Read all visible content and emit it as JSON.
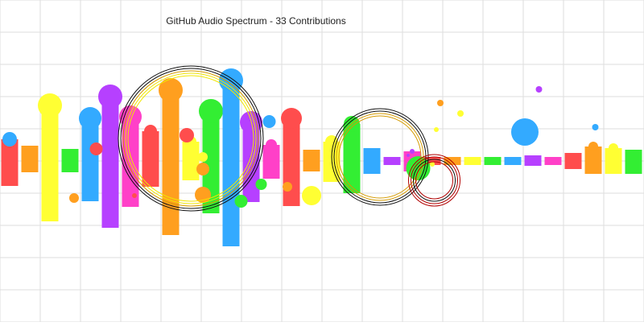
{
  "palette": {
    "background": "#ffffff",
    "grid": "#dddddd",
    "red": "#ff4d4d",
    "orange": "#ff9f1f",
    "yellow": "#ffff33",
    "green": "#33ee33",
    "blue": "#33aaff",
    "purple": "#b640ff",
    "pink": "#ff40c8",
    "ring_dark": "#111111",
    "ring_gold": "#d49a00",
    "ring_red": "#b00000",
    "ring_yellow": "#f0e600"
  },
  "chart_data": {
    "type": "bar",
    "title": "GitHub Audio Spectrum - 33 Contributions",
    "xlabel": "",
    "ylabel": "",
    "grid": true,
    "bars": [
      {
        "index": 1,
        "span": [
          -1.55,
          1.35
        ],
        "color": "red",
        "cap": "blue",
        "cap_size": 9
      },
      {
        "index": 2,
        "span": [
          -0.7,
          0.95
        ],
        "color": "orange",
        "cap": null,
        "cap_size": 0
      },
      {
        "index": 3,
        "span": [
          -3.75,
          3.45
        ],
        "color": "yellow",
        "cap": "yellow",
        "cap_size": 15
      },
      {
        "index": 4,
        "span": [
          -0.7,
          0.75
        ],
        "color": "green",
        "cap": null,
        "cap_size": 0
      },
      {
        "index": 5,
        "span": [
          -2.5,
          2.65
        ],
        "color": "blue",
        "cap": "blue",
        "cap_size": 14
      },
      {
        "index": 6,
        "span": [
          -4.15,
          4.0
        ],
        "color": "purple",
        "cap": "purple",
        "cap_size": 15
      },
      {
        "index": 7,
        "span": [
          -2.85,
          2.75
        ],
        "color": "pink",
        "cap": "pink",
        "cap_size": 14
      },
      {
        "index": 8,
        "span": [
          -1.6,
          1.85
        ],
        "color": "red",
        "cap": "red",
        "cap_size": 8
      },
      {
        "index": 9,
        "span": [
          -4.6,
          4.4
        ],
        "color": "orange",
        "cap": "orange",
        "cap_size": 15
      },
      {
        "index": 10,
        "span": [
          -1.2,
          1.2
        ],
        "color": "yellow",
        "cap": "yellow",
        "cap_size": 7
      },
      {
        "index": 11,
        "span": [
          -3.25,
          3.1
        ],
        "color": "green",
        "cap": "green",
        "cap_size": 15
      },
      {
        "index": 12,
        "span": [
          -5.3,
          5.0
        ],
        "color": "blue",
        "cap": "blue",
        "cap_size": 15
      },
      {
        "index": 13,
        "span": [
          -2.55,
          2.4
        ],
        "color": "purple",
        "cap": "purple",
        "cap_size": 14
      },
      {
        "index": 14,
        "span": [
          -1.1,
          1.0
        ],
        "color": "pink",
        "cap": "pink",
        "cap_size": 7
      },
      {
        "index": 15,
        "span": [
          -2.8,
          2.65
        ],
        "color": "red",
        "cap": "red",
        "cap_size": 13
      },
      {
        "index": 16,
        "span": [
          -0.65,
          0.7
        ],
        "color": "orange",
        "cap": null,
        "cap_size": 0
      },
      {
        "index": 17,
        "span": [
          -1.3,
          1.2
        ],
        "color": "yellow",
        "cap": "yellow",
        "cap_size": 8
      },
      {
        "index": 18,
        "span": [
          -2.0,
          2.3
        ],
        "color": "green",
        "cap": "green",
        "cap_size": 10
      },
      {
        "index": 19,
        "span": [
          -0.8,
          0.8
        ],
        "color": "blue",
        "cap": null,
        "cap_size": 0
      },
      {
        "index": 20,
        "span": [
          -0.25,
          0.25
        ],
        "color": "purple",
        "cap": null,
        "cap_size": 0
      },
      {
        "index": 21,
        "span": [
          -0.65,
          0.6
        ],
        "color": "pink",
        "cap": "purple",
        "cap_size": 3
      },
      {
        "index": 22,
        "span": [
          -0.25,
          0.25
        ],
        "color": "red",
        "cap": null,
        "cap_size": 0
      },
      {
        "index": 23,
        "span": [
          -0.25,
          0.25
        ],
        "color": "orange",
        "cap": null,
        "cap_size": 0
      },
      {
        "index": 24,
        "span": [
          -0.25,
          0.25
        ],
        "color": "yellow",
        "cap": null,
        "cap_size": 0
      },
      {
        "index": 25,
        "span": [
          -0.25,
          0.25
        ],
        "color": "green",
        "cap": null,
        "cap_size": 0
      },
      {
        "index": 26,
        "span": [
          -0.25,
          0.25
        ],
        "color": "blue",
        "cap": null,
        "cap_size": 0
      },
      {
        "index": 27,
        "span": [
          -0.3,
          0.35
        ],
        "color": "purple",
        "cap": null,
        "cap_size": 0
      },
      {
        "index": 28,
        "span": [
          -0.25,
          0.25
        ],
        "color": "pink",
        "cap": null,
        "cap_size": 0
      },
      {
        "index": 29,
        "span": [
          -0.5,
          0.5
        ],
        "color": "red",
        "cap": null,
        "cap_size": 0
      },
      {
        "index": 30,
        "span": [
          -0.8,
          0.9
        ],
        "color": "orange",
        "cap": "orange",
        "cap_size": 6
      },
      {
        "index": 31,
        "span": [
          -0.8,
          0.8
        ],
        "color": "yellow",
        "cap": "yellow",
        "cap_size": 6
      },
      {
        "index": 32,
        "span": [
          -0.8,
          0.7
        ],
        "color": "green",
        "cap": null,
        "cap_size": 0
      }
    ],
    "x_range": [
      0,
      32
    ],
    "y_range": [
      -5,
      5
    ],
    "scatter_dots": [
      {
        "x": 4.2,
        "y": -2.3,
        "r": 6,
        "color": "orange"
      },
      {
        "x": 7.2,
        "y": -2.15,
        "r": 3,
        "color": "red"
      },
      {
        "x": 5.3,
        "y": 0.75,
        "r": 8,
        "color": "red"
      },
      {
        "x": 9.8,
        "y": 1.6,
        "r": 9,
        "color": "red"
      },
      {
        "x": 10.6,
        "y": 0.25,
        "r": 6,
        "color": "yellow"
      },
      {
        "x": 10.6,
        "y": -0.5,
        "r": 8,
        "color": "orange"
      },
      {
        "x": 10.6,
        "y": -2.1,
        "r": 10,
        "color": "orange"
      },
      {
        "x": 13.9,
        "y": 2.45,
        "r": 8,
        "color": "blue"
      },
      {
        "x": 13.5,
        "y": -1.45,
        "r": 7,
        "color": "green"
      },
      {
        "x": 14.8,
        "y": -1.6,
        "r": 6,
        "color": "orange"
      },
      {
        "x": 12.5,
        "y": -2.5,
        "r": 8,
        "color": "green"
      },
      {
        "x": 16.0,
        "y": -2.15,
        "r": 12,
        "color": "yellow"
      },
      {
        "x": 21.3,
        "y": -0.45,
        "r": 15,
        "color": "green"
      },
      {
        "x": 20.8,
        "y": 0.35,
        "r": 2,
        "color": "purple"
      },
      {
        "x": 22.4,
        "y": 3.6,
        "r": 4,
        "color": "orange"
      },
      {
        "x": 23.4,
        "y": 2.95,
        "r": 4,
        "color": "yellow"
      },
      {
        "x": 22.2,
        "y": 1.95,
        "r": 3,
        "color": "yellow"
      },
      {
        "x": 22.0,
        "y": -0.2,
        "r": 3,
        "color": "yellow"
      },
      {
        "x": 27.3,
        "y": 4.45,
        "r": 4,
        "color": "purple"
      },
      {
        "x": 26.6,
        "y": 1.8,
        "r": 17,
        "color": "blue"
      },
      {
        "x": 30.1,
        "y": 2.1,
        "r": 4,
        "color": "blue"
      }
    ],
    "rings": [
      {
        "x": 10.0,
        "y": 1.4,
        "r": 90,
        "colors": [
          "ring_dark",
          "ring_dark",
          "ring_gold",
          "ring_yellow",
          "ring_yellow"
        ]
      },
      {
        "x": 19.4,
        "y": 0.25,
        "r": 60,
        "colors": [
          "ring_dark",
          "ring_dark",
          "ring_gold",
          "ring_gold"
        ]
      },
      {
        "x": 22.1,
        "y": -1.2,
        "r": 32,
        "colors": [
          "ring_red",
          "ring_red",
          "ring_dark",
          "ring_red"
        ]
      }
    ]
  }
}
